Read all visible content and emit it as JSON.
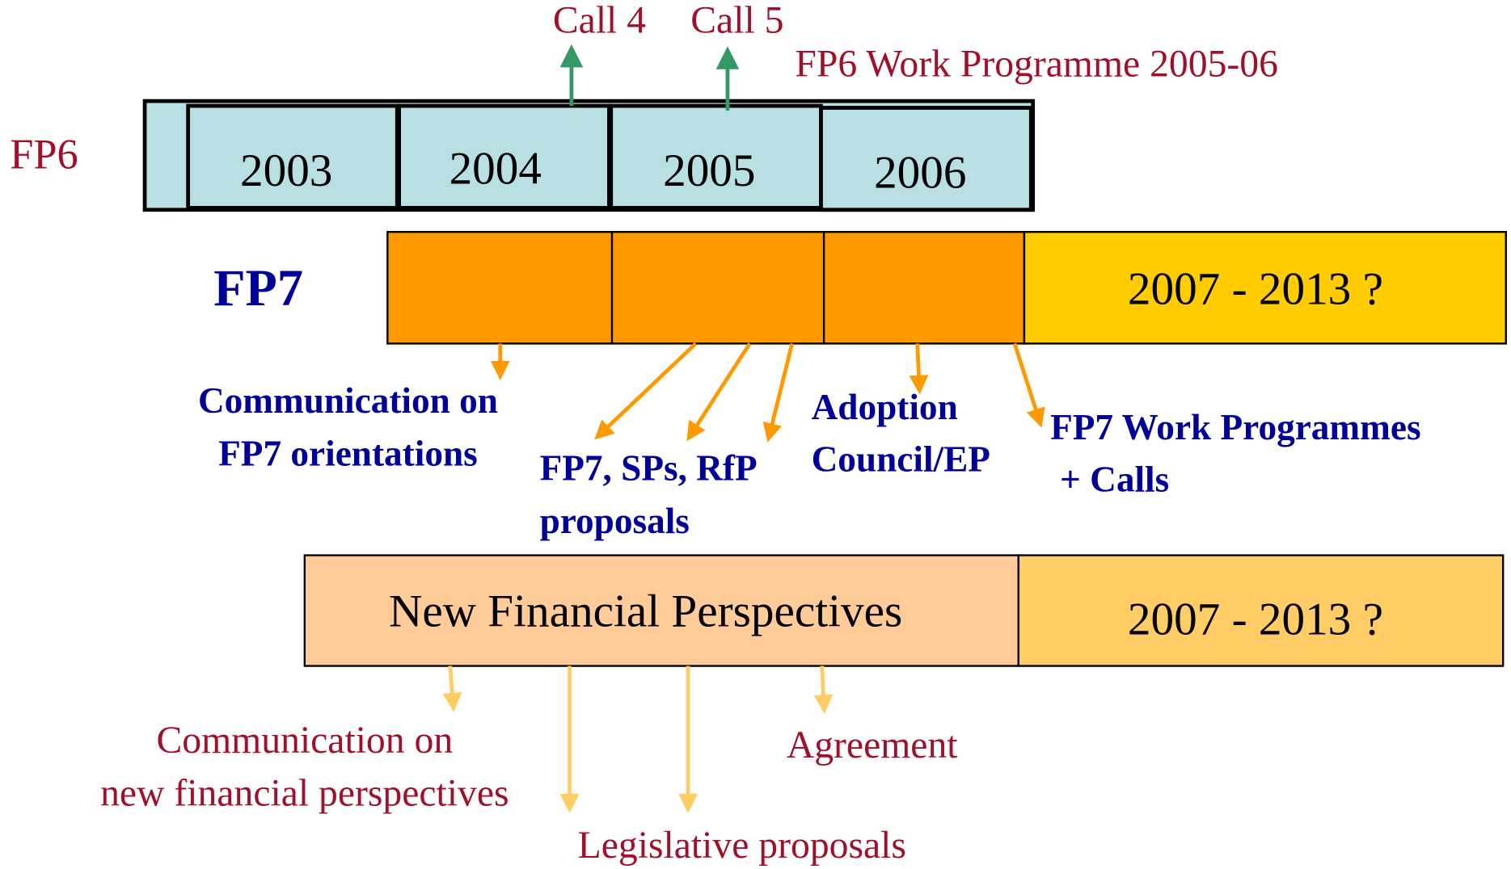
{
  "fp6": {
    "label": "FP6",
    "years": [
      "2003",
      "2004",
      "2005",
      "2006"
    ],
    "calls": [
      "Call 4",
      "Call 5"
    ],
    "work_programme": "FP6 Work Programme 2005-06"
  },
  "fp7": {
    "label": "FP7",
    "period": "2007 - 2013 ?",
    "milestones": [
      [
        "Communication on",
        "FP7 orientations"
      ],
      [
        "FP7, SPs, RfP",
        "proposals"
      ],
      [
        "Adoption",
        "Council/EP"
      ],
      [
        "FP7 Work Programmes",
        "+ Calls"
      ]
    ]
  },
  "financial": {
    "label": "New Financial Perspectives",
    "period": "2007 - 2013 ?",
    "milestones": [
      [
        "Communication on",
        "new financial perspectives"
      ],
      [
        "Legislative proposals"
      ],
      [
        "Agreement"
      ]
    ]
  }
}
